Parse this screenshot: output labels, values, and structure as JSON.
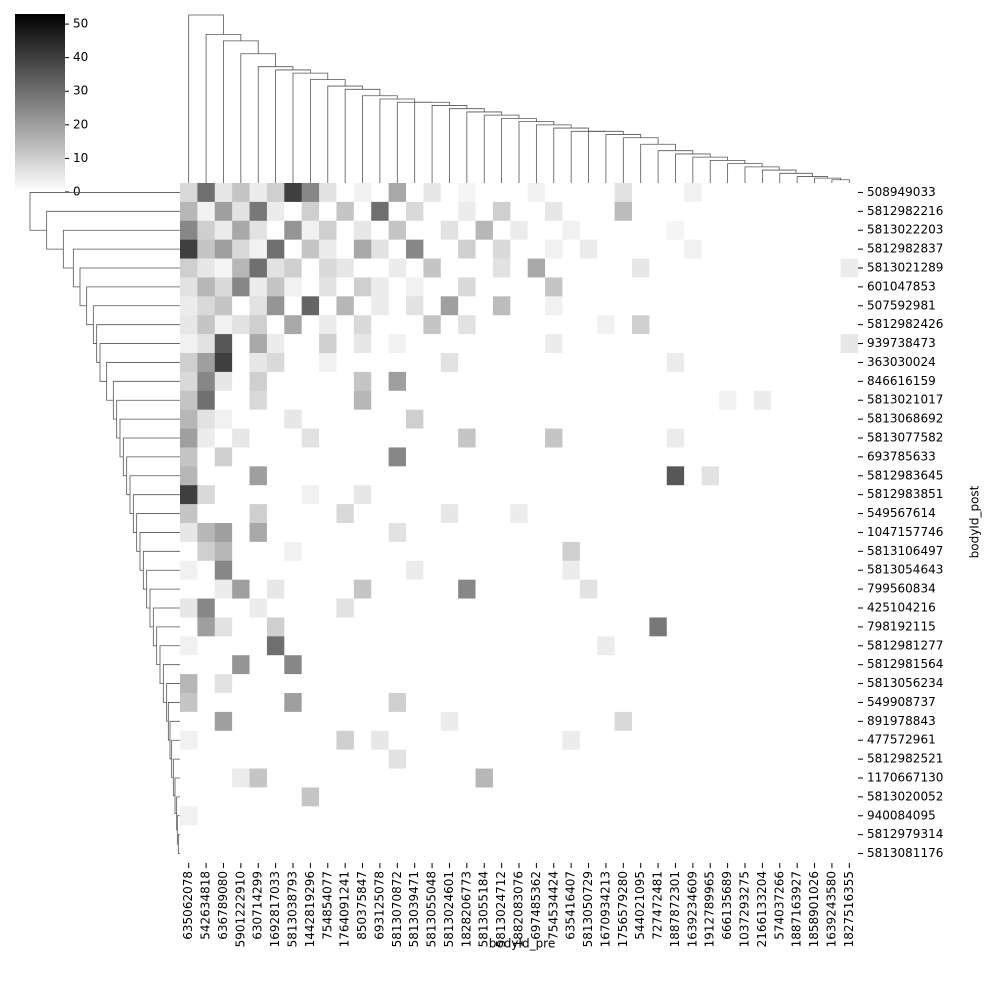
{
  "chart_data": {
    "type": "clustermap",
    "x_label": "bodyId_pre",
    "y_label": "bodyId_post",
    "columns": [
      "635062078",
      "542634818",
      "636789080",
      "5901222910",
      "630714299",
      "1692817033",
      "5813038793",
      "1442819296",
      "754854077",
      "1764091241",
      "850375847",
      "693125078",
      "5813070872",
      "5813039471",
      "5813055048",
      "5813024601",
      "1828206773",
      "5813055184",
      "5813024712",
      "1882083076",
      "697485362",
      "754534424",
      "635416407",
      "5813050729",
      "1670934213",
      "1756579280",
      "544021095",
      "727472481",
      "1887872301",
      "1639234609",
      "1912789965",
      "666135689",
      "1037293275",
      "2166133204",
      "574037266",
      "1887163927",
      "1858901026",
      "1639243580",
      "1827516355"
    ],
    "rows": [
      "508949033",
      "5812982216",
      "5813022203",
      "5812982837",
      "5813021289",
      "601047853",
      "507592981",
      "5812982426",
      "939738473",
      "363030024",
      "846616159",
      "5813021017",
      "5813068692",
      "5813077582",
      "693785633",
      "5812983645",
      "5812983851",
      "549567614",
      "1047157746",
      "5813106497",
      "5813054643",
      "799560834",
      "425104216",
      "798192115",
      "5812981277",
      "5812981564",
      "5813056234",
      "549908737",
      "891978843",
      "477572961",
      "5812982521",
      "1170667130",
      "5813020052",
      "940084095",
      "5812979314",
      "5813081176"
    ],
    "matrix": [
      [
        8,
        30,
        5,
        12,
        4,
        10,
        40,
        25,
        6,
        0,
        3,
        0,
        18,
        0,
        5,
        0,
        2,
        0,
        0,
        0,
        3,
        0,
        0,
        0,
        0,
        6,
        0,
        0,
        0,
        3,
        0,
        0,
        0,
        0,
        0,
        0,
        0,
        0,
        0
      ],
      [
        15,
        3,
        20,
        6,
        28,
        4,
        0,
        10,
        0,
        12,
        0,
        30,
        0,
        8,
        0,
        0,
        4,
        0,
        10,
        0,
        0,
        5,
        0,
        0,
        0,
        14,
        0,
        0,
        0,
        0,
        0,
        0,
        0,
        0,
        0,
        0,
        0,
        0,
        0
      ],
      [
        25,
        10,
        4,
        18,
        6,
        0,
        22,
        3,
        10,
        0,
        5,
        0,
        12,
        0,
        0,
        6,
        0,
        15,
        0,
        4,
        0,
        0,
        3,
        0,
        0,
        0,
        0,
        0,
        2,
        0,
        0,
        0,
        0,
        0,
        0,
        0,
        0,
        0,
        0
      ],
      [
        40,
        12,
        20,
        8,
        3,
        30,
        0,
        12,
        4,
        0,
        18,
        6,
        0,
        25,
        0,
        0,
        10,
        0,
        8,
        0,
        0,
        3,
        0,
        4,
        0,
        0,
        0,
        0,
        0,
        3,
        0,
        0,
        0,
        0,
        0,
        0,
        0,
        0,
        0
      ],
      [
        10,
        5,
        2,
        15,
        30,
        6,
        10,
        0,
        8,
        5,
        0,
        0,
        4,
        0,
        12,
        0,
        0,
        0,
        6,
        0,
        18,
        0,
        0,
        0,
        0,
        0,
        5,
        0,
        0,
        0,
        0,
        0,
        0,
        0,
        0,
        0,
        0,
        0,
        4
      ],
      [
        6,
        15,
        8,
        25,
        4,
        12,
        3,
        0,
        6,
        0,
        10,
        4,
        0,
        3,
        0,
        0,
        8,
        0,
        0,
        0,
        0,
        12,
        0,
        0,
        0,
        0,
        0,
        0,
        0,
        0,
        0,
        0,
        0,
        0,
        0,
        0,
        0,
        0,
        0
      ],
      [
        4,
        8,
        12,
        0,
        6,
        22,
        0,
        32,
        0,
        15,
        0,
        4,
        0,
        6,
        0,
        20,
        0,
        0,
        14,
        0,
        0,
        3,
        0,
        0,
        0,
        0,
        0,
        0,
        0,
        0,
        0,
        0,
        0,
        0,
        0,
        0,
        0,
        0,
        0
      ],
      [
        5,
        12,
        3,
        6,
        10,
        0,
        18,
        0,
        4,
        0,
        8,
        0,
        0,
        0,
        12,
        0,
        6,
        0,
        0,
        0,
        0,
        0,
        0,
        0,
        3,
        0,
        10,
        0,
        0,
        0,
        0,
        0,
        0,
        0,
        0,
        0,
        0,
        0,
        0
      ],
      [
        3,
        6,
        35,
        0,
        18,
        4,
        0,
        0,
        10,
        0,
        5,
        0,
        3,
        0,
        0,
        0,
        0,
        0,
        0,
        0,
        0,
        4,
        0,
        0,
        0,
        0,
        0,
        0,
        0,
        0,
        0,
        0,
        0,
        0,
        0,
        0,
        0,
        0,
        5
      ],
      [
        10,
        20,
        40,
        0,
        5,
        8,
        0,
        0,
        3,
        0,
        0,
        0,
        0,
        0,
        0,
        6,
        0,
        0,
        0,
        0,
        0,
        0,
        0,
        0,
        0,
        0,
        0,
        0,
        4,
        0,
        0,
        0,
        0,
        0,
        0,
        0,
        0,
        0,
        0
      ],
      [
        8,
        25,
        5,
        0,
        10,
        0,
        0,
        0,
        0,
        0,
        12,
        0,
        20,
        0,
        0,
        0,
        0,
        0,
        0,
        0,
        0,
        0,
        0,
        0,
        0,
        0,
        0,
        0,
        0,
        0,
        0,
        0,
        0,
        0,
        0,
        0,
        0,
        0,
        0
      ],
      [
        12,
        30,
        0,
        0,
        8,
        0,
        0,
        0,
        0,
        0,
        15,
        0,
        0,
        0,
        0,
        0,
        0,
        0,
        0,
        0,
        0,
        0,
        0,
        0,
        0,
        0,
        0,
        0,
        0,
        0,
        0,
        3,
        0,
        4,
        0,
        0,
        0,
        0,
        0
      ],
      [
        15,
        6,
        3,
        0,
        0,
        0,
        5,
        0,
        0,
        0,
        0,
        0,
        0,
        10,
        0,
        0,
        0,
        0,
        0,
        0,
        0,
        0,
        0,
        0,
        0,
        0,
        0,
        0,
        0,
        0,
        0,
        0,
        0,
        0,
        0,
        0,
        0,
        0,
        0
      ],
      [
        20,
        4,
        0,
        5,
        0,
        0,
        0,
        6,
        0,
        0,
        0,
        0,
        0,
        0,
        0,
        0,
        12,
        0,
        0,
        0,
        0,
        12,
        0,
        0,
        0,
        0,
        0,
        0,
        4,
        0,
        0,
        0,
        0,
        0,
        0,
        0,
        0,
        0,
        0
      ],
      [
        12,
        0,
        10,
        0,
        0,
        0,
        0,
        0,
        0,
        0,
        0,
        0,
        25,
        0,
        0,
        0,
        0,
        0,
        0,
        0,
        0,
        0,
        0,
        0,
        0,
        0,
        0,
        0,
        0,
        0,
        0,
        0,
        0,
        0,
        0,
        0,
        0,
        0,
        0
      ],
      [
        15,
        0,
        0,
        0,
        20,
        0,
        0,
        0,
        0,
        0,
        0,
        0,
        0,
        0,
        0,
        0,
        0,
        0,
        0,
        0,
        0,
        0,
        0,
        0,
        0,
        0,
        0,
        0,
        35,
        0,
        6,
        0,
        0,
        0,
        0,
        0,
        0,
        0,
        0
      ],
      [
        40,
        8,
        0,
        0,
        0,
        0,
        0,
        3,
        0,
        0,
        5,
        0,
        0,
        0,
        0,
        0,
        0,
        0,
        0,
        0,
        0,
        0,
        0,
        0,
        0,
        0,
        0,
        0,
        0,
        0,
        0,
        0,
        0,
        0,
        0,
        0,
        0,
        0,
        0
      ],
      [
        12,
        0,
        0,
        0,
        10,
        0,
        0,
        0,
        0,
        8,
        0,
        0,
        0,
        0,
        0,
        5,
        0,
        0,
        0,
        4,
        0,
        0,
        0,
        0,
        0,
        0,
        0,
        0,
        0,
        0,
        0,
        0,
        0,
        0,
        0,
        0,
        0,
        0,
        0
      ],
      [
        5,
        15,
        20,
        0,
        18,
        0,
        0,
        0,
        0,
        0,
        0,
        0,
        6,
        0,
        0,
        0,
        0,
        0,
        0,
        0,
        0,
        0,
        0,
        0,
        0,
        0,
        0,
        0,
        0,
        0,
        0,
        0,
        0,
        0,
        0,
        0,
        0,
        0,
        0
      ],
      [
        0,
        10,
        15,
        0,
        0,
        0,
        3,
        0,
        0,
        0,
        0,
        0,
        0,
        0,
        0,
        0,
        0,
        0,
        0,
        0,
        0,
        0,
        10,
        0,
        0,
        0,
        0,
        0,
        0,
        0,
        0,
        0,
        0,
        0,
        0,
        0,
        0,
        0,
        0
      ],
      [
        3,
        0,
        25,
        0,
        0,
        0,
        0,
        0,
        0,
        0,
        0,
        0,
        0,
        4,
        0,
        0,
        0,
        0,
        0,
        0,
        0,
        0,
        4,
        0,
        0,
        0,
        0,
        0,
        0,
        0,
        0,
        0,
        0,
        0,
        0,
        0,
        0,
        0,
        0
      ],
      [
        0,
        0,
        4,
        20,
        0,
        5,
        0,
        0,
        0,
        0,
        12,
        0,
        0,
        0,
        0,
        0,
        25,
        0,
        0,
        0,
        0,
        0,
        0,
        6,
        0,
        0,
        0,
        0,
        0,
        0,
        0,
        0,
        0,
        0,
        0,
        0,
        0,
        0,
        0
      ],
      [
        5,
        25,
        0,
        0,
        4,
        0,
        0,
        0,
        0,
        6,
        0,
        0,
        0,
        0,
        0,
        0,
        0,
        0,
        0,
        0,
        0,
        0,
        0,
        0,
        0,
        0,
        0,
        0,
        0,
        0,
        0,
        0,
        0,
        0,
        0,
        0,
        0,
        0,
        0
      ],
      [
        0,
        20,
        6,
        0,
        0,
        10,
        0,
        0,
        0,
        0,
        0,
        0,
        0,
        0,
        0,
        0,
        0,
        0,
        0,
        0,
        0,
        0,
        0,
        0,
        0,
        0,
        0,
        28,
        0,
        0,
        0,
        0,
        0,
        0,
        0,
        0,
        0,
        0,
        0
      ],
      [
        3,
        0,
        0,
        0,
        0,
        30,
        0,
        0,
        0,
        0,
        0,
        0,
        0,
        0,
        0,
        0,
        0,
        0,
        0,
        0,
        0,
        0,
        0,
        0,
        4,
        0,
        0,
        0,
        0,
        0,
        0,
        0,
        0,
        0,
        0,
        0,
        0,
        0,
        0
      ],
      [
        0,
        0,
        0,
        22,
        0,
        0,
        25,
        0,
        0,
        0,
        0,
        0,
        0,
        0,
        0,
        0,
        0,
        0,
        0,
        0,
        0,
        0,
        0,
        0,
        0,
        0,
        0,
        0,
        0,
        0,
        0,
        0,
        0,
        0,
        0,
        0,
        0,
        0,
        0
      ],
      [
        15,
        0,
        6,
        0,
        0,
        0,
        0,
        0,
        0,
        0,
        0,
        0,
        0,
        0,
        0,
        0,
        0,
        0,
        0,
        0,
        0,
        0,
        0,
        0,
        0,
        0,
        0,
        0,
        0,
        0,
        0,
        0,
        0,
        0,
        0,
        0,
        0,
        0,
        0
      ],
      [
        12,
        0,
        0,
        0,
        0,
        0,
        20,
        0,
        0,
        0,
        0,
        0,
        10,
        0,
        0,
        0,
        0,
        0,
        0,
        0,
        0,
        0,
        0,
        0,
        0,
        0,
        0,
        0,
        0,
        0,
        0,
        0,
        0,
        0,
        0,
        0,
        0,
        0,
        0
      ],
      [
        0,
        0,
        20,
        0,
        0,
        0,
        0,
        0,
        0,
        0,
        0,
        0,
        0,
        0,
        0,
        4,
        0,
        0,
        0,
        0,
        0,
        0,
        0,
        0,
        0,
        8,
        0,
        0,
        0,
        0,
        0,
        0,
        0,
        0,
        0,
        0,
        0,
        0,
        0
      ],
      [
        3,
        0,
        0,
        0,
        0,
        0,
        0,
        0,
        0,
        10,
        0,
        5,
        0,
        0,
        0,
        0,
        0,
        0,
        0,
        0,
        0,
        0,
        4,
        0,
        0,
        0,
        0,
        0,
        0,
        0,
        0,
        0,
        0,
        0,
        0,
        0,
        0,
        0,
        0
      ],
      [
        0,
        0,
        0,
        0,
        0,
        0,
        0,
        0,
        0,
        0,
        0,
        0,
        6,
        0,
        0,
        0,
        0,
        0,
        0,
        0,
        0,
        0,
        0,
        0,
        0,
        0,
        0,
        0,
        0,
        0,
        0,
        0,
        0,
        0,
        0,
        0,
        0,
        0,
        0
      ],
      [
        0,
        0,
        0,
        4,
        12,
        0,
        0,
        0,
        0,
        0,
        0,
        0,
        0,
        0,
        0,
        0,
        0,
        15,
        0,
        0,
        0,
        0,
        0,
        0,
        0,
        0,
        0,
        0,
        0,
        0,
        0,
        0,
        0,
        0,
        0,
        0,
        0,
        0,
        0
      ],
      [
        0,
        0,
        0,
        0,
        0,
        0,
        0,
        12,
        0,
        0,
        0,
        0,
        0,
        0,
        0,
        0,
        0,
        0,
        0,
        0,
        0,
        0,
        0,
        0,
        0,
        0,
        0,
        0,
        0,
        0,
        0,
        0,
        0,
        0,
        0,
        0,
        0,
        0,
        0
      ],
      [
        3,
        0,
        0,
        0,
        0,
        0,
        0,
        0,
        0,
        0,
        0,
        0,
        0,
        0,
        0,
        0,
        0,
        0,
        0,
        0,
        0,
        0,
        0,
        0,
        0,
        0,
        0,
        0,
        0,
        0,
        0,
        0,
        0,
        0,
        0,
        0,
        0,
        0,
        0
      ],
      [
        0,
        0,
        0,
        0,
        0,
        0,
        0,
        0,
        0,
        0,
        0,
        0,
        0,
        0,
        0,
        0,
        0,
        0,
        0,
        0,
        0,
        0,
        0,
        0,
        0,
        0,
        0,
        0,
        0,
        0,
        0,
        0,
        0,
        0,
        0,
        0,
        0,
        0,
        0
      ],
      [
        0,
        0,
        0,
        0,
        0,
        0,
        0,
        0,
        0,
        0,
        0,
        0,
        0,
        0,
        0,
        0,
        0,
        0,
        0,
        0,
        0,
        0,
        0,
        0,
        0,
        0,
        0,
        0,
        0,
        0,
        0,
        0,
        0,
        0,
        0,
        0,
        0,
        0,
        0
      ]
    ],
    "vlim": [
      0,
      53
    ],
    "colorbar_ticks": [
      0,
      10,
      20,
      30,
      40,
      50
    ],
    "col_dendrogram": [
      52,
      46,
      44,
      40,
      36,
      35,
      34,
      32,
      30,
      29,
      27,
      26,
      25,
      25,
      24,
      23,
      22,
      21,
      20,
      19,
      18,
      17,
      16,
      16,
      15,
      14,
      12,
      10,
      9,
      8,
      7,
      6,
      5,
      4,
      3,
      2,
      1.5,
      1
    ],
    "row_dendrogram": [
      45,
      40,
      35,
      32,
      30,
      28,
      26,
      25,
      24,
      22,
      20,
      19,
      18,
      17,
      16,
      15,
      14,
      13,
      12,
      11,
      10,
      9,
      8,
      7,
      6,
      5,
      4,
      3.5,
      3,
      2.5,
      2,
      1.5,
      1,
      0.8,
      0.5
    ]
  }
}
